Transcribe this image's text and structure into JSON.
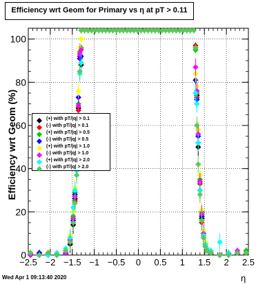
{
  "title": "Efficiency wrt Geom for Primary vs   η at pT > 0.11",
  "footer": "Wed Apr  1 09:13:40 2020",
  "chart_data": {
    "type": "scatter",
    "title": "Efficiency wrt Geom for Primary vs   η at pT > 0.11",
    "xlabel": "η",
    "ylabel": "Efficiency wrt Geom (%)",
    "xlim": [
      -2.5,
      2.5
    ],
    "ylim": [
      0,
      105
    ],
    "xticks": [
      "−2.5",
      "−2",
      "−1.5",
      "−1",
      "−0.5",
      "0",
      "0.5",
      "1",
      "1.5",
      "2",
      "2.5"
    ],
    "yticks": [
      "0",
      "20",
      "40",
      "60",
      "80",
      "100"
    ],
    "grid": true,
    "legend_position": "middle-left",
    "series": [
      {
        "name": "(+) with pT/|q| > 0.1",
        "color": "#000000",
        "shape": "diamond",
        "x": [
          -2.45,
          -2.25,
          -2.05,
          -1.85,
          -1.65,
          -1.55,
          -1.48,
          -1.44,
          -1.4,
          -1.36,
          -1.33,
          -1.3,
          1.3,
          1.33,
          1.36,
          1.4,
          1.44,
          1.48,
          1.52,
          1.56,
          1.65,
          1.85,
          2.05,
          2.25,
          2.45
        ],
        "y": [
          1,
          0,
          0,
          0,
          1,
          5,
          14,
          26,
          40,
          68,
          91,
          88,
          96,
          74,
          50,
          30,
          17,
          9,
          5,
          3,
          1,
          0,
          0,
          1,
          2
        ]
      },
      {
        "name": "(-) with pT/|q| > 0.1",
        "color": "#ff0000",
        "shape": "diamond",
        "x": [
          -2.45,
          -2.25,
          -2.05,
          -1.85,
          -1.65,
          -1.55,
          -1.48,
          -1.44,
          -1.4,
          -1.36,
          -1.33,
          -1.3,
          1.3,
          1.33,
          1.36,
          1.4,
          1.44,
          1.48,
          1.52,
          1.56,
          1.65,
          1.85,
          2.05,
          2.25,
          2.45
        ],
        "y": [
          0,
          1,
          0,
          0,
          1,
          6,
          15,
          25,
          42,
          67,
          92,
          89,
          97,
          73,
          52,
          33,
          15,
          8,
          4,
          2,
          1,
          0,
          1,
          1,
          1
        ]
      },
      {
        "name": "(+) with pT/|q| > 0.5",
        "color": "#00c800",
        "shape": "diamond",
        "x": [
          -2.45,
          -2.25,
          -2.05,
          -1.85,
          -1.65,
          -1.55,
          -1.48,
          -1.44,
          -1.4,
          -1.36,
          -1.33,
          -1.3,
          1.3,
          1.33,
          1.36,
          1.4,
          1.44,
          1.48,
          1.52,
          1.56,
          1.65,
          1.85,
          2.05,
          2.25,
          2.45
        ],
        "y": [
          1,
          0,
          1,
          0,
          2,
          8,
          18,
          29,
          45,
          70,
          94,
          96,
          95,
          75,
          58,
          35,
          20,
          10,
          5,
          3,
          1,
          0,
          1,
          1,
          2
        ]
      },
      {
        "name": "(-) with pT/|q| > 0.5",
        "color": "#0000ff",
        "shape": "diamond",
        "x": [
          -2.45,
          -2.25,
          -2.05,
          -1.85,
          -1.65,
          -1.55,
          -1.48,
          -1.44,
          -1.4,
          -1.36,
          -1.33,
          -1.3,
          1.3,
          1.33,
          1.36,
          1.4,
          1.44,
          1.48,
          1.52,
          1.56,
          1.65,
          1.85,
          2.05,
          2.25,
          2.45
        ],
        "y": [
          0,
          1,
          0,
          0,
          1,
          7,
          16,
          28,
          43,
          73,
          91,
          92,
          81,
          72,
          55,
          34,
          18,
          9,
          4,
          2,
          1,
          0,
          0,
          1,
          1
        ]
      },
      {
        "name": "(+) with pT/|q| > 1.0",
        "color": "#ffff00",
        "shape": "diamond",
        "x": [
          -2.45,
          -2.25,
          -2.05,
          -1.85,
          -1.65,
          -1.55,
          -1.48,
          -1.44,
          -1.4,
          -1.36,
          -1.33,
          -1.3,
          1.3,
          1.33,
          1.36,
          1.4,
          1.44,
          1.48,
          1.52,
          1.56,
          1.65,
          1.85,
          2.05,
          2.25,
          2.45
        ],
        "y": [
          1,
          0,
          1,
          1,
          2,
          9,
          20,
          31,
          48,
          76,
          96,
          100,
          84,
          78,
          58,
          37,
          21,
          11,
          6,
          3,
          1,
          0,
          0,
          1,
          1
        ]
      },
      {
        "name": "(-) with pT/|q| > 1.0",
        "color": "#ff00ff",
        "shape": "diamond",
        "x": [
          -2.45,
          -2.25,
          -2.05,
          -1.85,
          -1.65,
          -1.55,
          -1.48,
          -1.44,
          -1.4,
          -1.36,
          -1.33,
          -1.3,
          1.3,
          1.33,
          1.36,
          1.4,
          1.44,
          1.48,
          1.52,
          1.56,
          1.65,
          1.85,
          2.05,
          2.25,
          2.45
        ],
        "y": [
          0,
          0,
          1,
          0,
          1,
          7,
          17,
          27,
          44,
          69,
          93,
          95,
          87,
          76,
          56,
          34,
          19,
          10,
          5,
          2,
          1,
          0,
          1,
          2,
          1
        ]
      },
      {
        "name": "(+) with pT/|q| > 2.0",
        "color": "#00ffff",
        "shape": "diamond",
        "x": [
          -2.45,
          -2.25,
          -2.05,
          -1.85,
          -1.65,
          -1.55,
          -1.48,
          -1.44,
          -1.4,
          -1.36,
          -1.33,
          -1.3,
          1.3,
          1.33,
          1.36,
          1.4,
          1.44,
          1.48,
          1.52,
          1.56,
          1.65,
          1.85,
          2.05,
          2.25,
          2.45
        ],
        "y": [
          1,
          0,
          0,
          1,
          3,
          8,
          22,
          30,
          39,
          62,
          84,
          89,
          75,
          70,
          52,
          30,
          16,
          9,
          5,
          3,
          2,
          6,
          1,
          1,
          1
        ]
      },
      {
        "name": "(-) with pT/|q| > 2.0",
        "color": "#5ac85a",
        "shape": "diamond",
        "x": [
          -2.45,
          -2.25,
          -2.05,
          -1.85,
          -1.65,
          -1.55,
          -1.48,
          -1.44,
          -1.4,
          -1.36,
          -1.33,
          -1.3,
          -1.22,
          -1.14,
          -1.06,
          -0.98,
          -0.9,
          -0.82,
          -0.74,
          -0.66,
          -0.58,
          -0.5,
          -0.42,
          -0.34,
          -0.26,
          -0.18,
          -0.1,
          -0.02,
          0.06,
          0.14,
          0.22,
          0.3,
          0.38,
          0.46,
          0.54,
          0.62,
          0.7,
          0.78,
          0.86,
          0.94,
          1.02,
          1.1,
          1.18,
          1.26,
          1.3,
          1.33,
          1.36,
          1.4,
          1.44,
          1.48,
          1.52,
          1.56,
          1.65,
          1.85,
          2.05,
          2.25,
          2.45
        ],
        "y": [
          1,
          0,
          1,
          0,
          2,
          6,
          15,
          24,
          37,
          59,
          85,
          104,
          104,
          104,
          104,
          104,
          104,
          104,
          104,
          104,
          104,
          104,
          104,
          104,
          104,
          104,
          104,
          104,
          104,
          104,
          104,
          104,
          104,
          104,
          104,
          104,
          104,
          104,
          104,
          104,
          104,
          104,
          104,
          104,
          96,
          60,
          42,
          28,
          16,
          8,
          4,
          2,
          1,
          0,
          0,
          1,
          1
        ]
      }
    ]
  }
}
